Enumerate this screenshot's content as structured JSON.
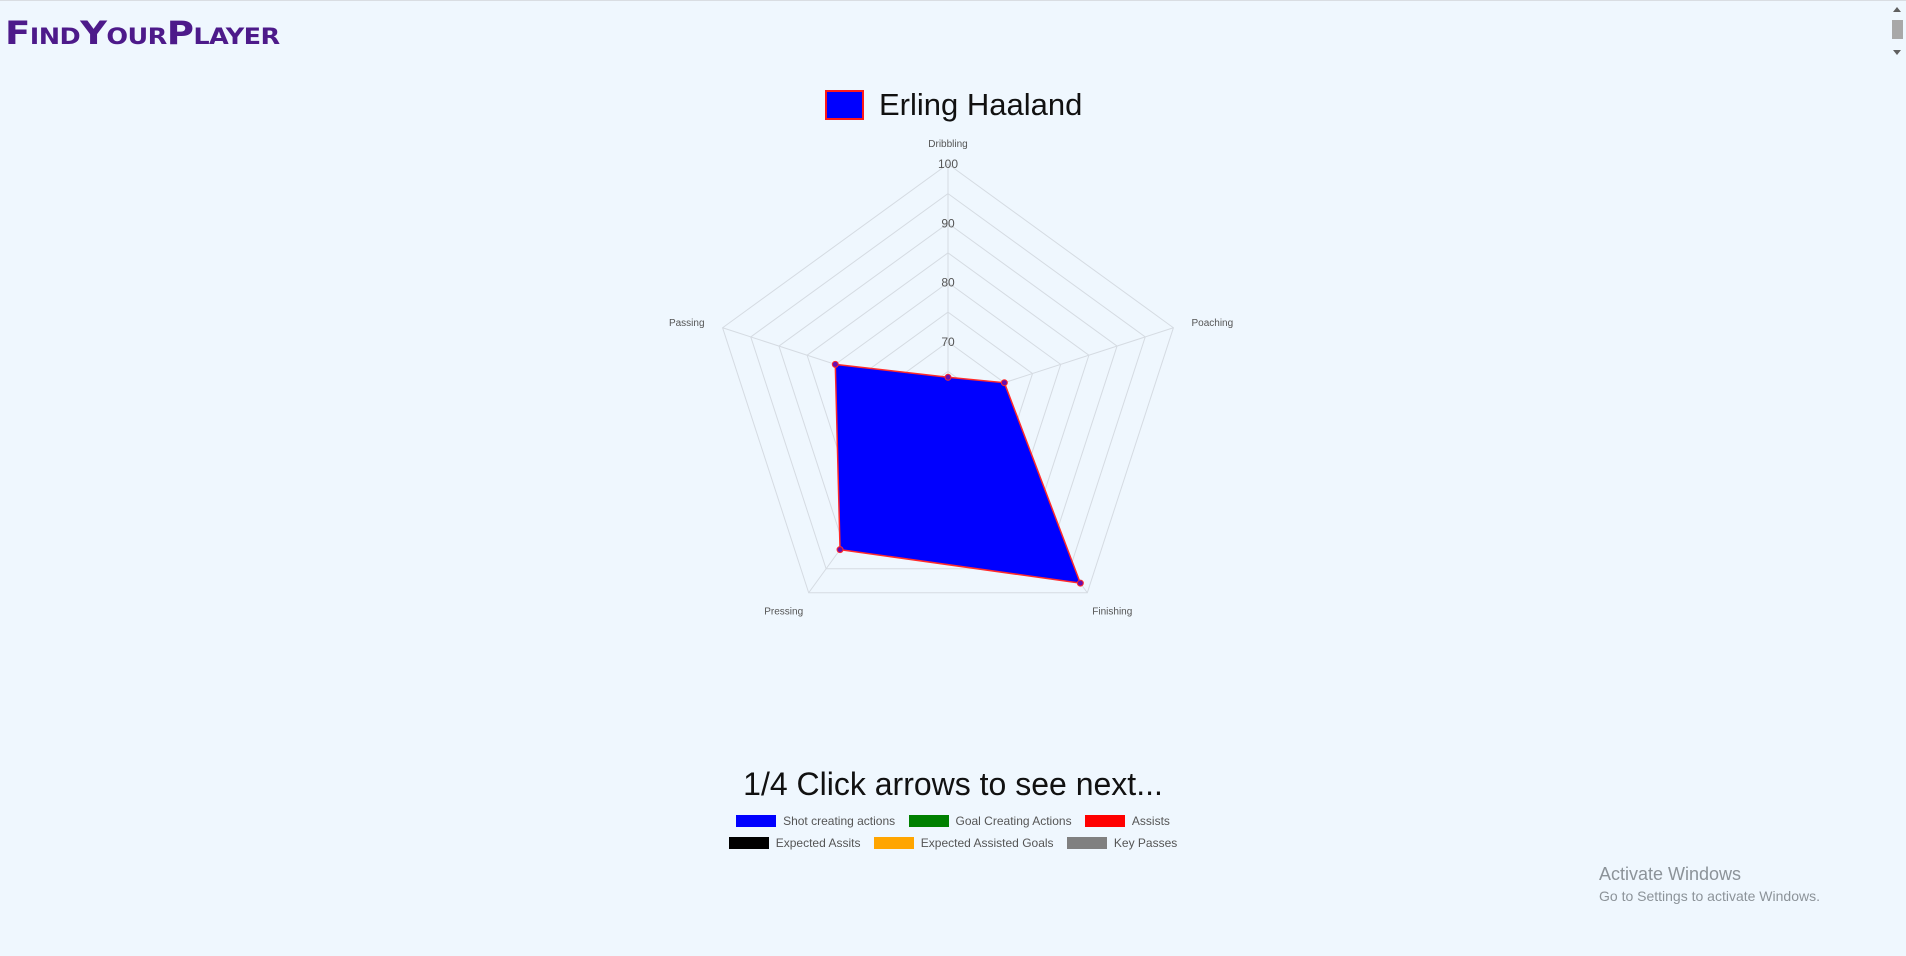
{
  "header": {
    "logo_text": "FindYourPlayer"
  },
  "chart_data": {
    "type": "radar",
    "title": "",
    "axes": [
      "Dribbling",
      "Poaching",
      "Finishing",
      "Pressing",
      "Passing"
    ],
    "rlim": [
      60,
      100
    ],
    "ticks": [
      70,
      80,
      90,
      100
    ],
    "grid": true,
    "series": [
      {
        "name": "Erling Haaland",
        "values": [
          64,
          70,
          98,
          91,
          80
        ],
        "fill": "#0000ff",
        "border": "#ff1a1a",
        "point": "#6a0dad"
      }
    ]
  },
  "pager": {
    "text": "1/4 Click arrows to see next..."
  },
  "stat_legend": {
    "row1": [
      {
        "label": "Shot creating actions",
        "color": "#0000ff"
      },
      {
        "label": "Goal Creating Actions",
        "color": "#008000"
      },
      {
        "label": "Assists",
        "color": "#ff0000"
      }
    ],
    "row2": [
      {
        "label": "Expected Assits",
        "color": "#000000"
      },
      {
        "label": "Expected Assisted Goals",
        "color": "#ffa500"
      },
      {
        "label": "Key Passes",
        "color": "#808080"
      }
    ]
  },
  "watermark": {
    "title": "Activate Windows",
    "subtitle": "Go to Settings to activate Windows."
  }
}
